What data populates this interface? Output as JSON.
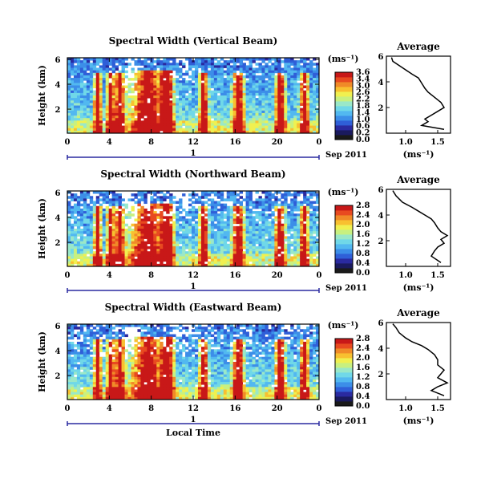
{
  "chart_data": [
    {
      "type": "heatmap",
      "title": "Spectral Width (Vertical Beam)",
      "ylabel": "Height (km)",
      "x_ticks": [
        "0",
        "4",
        "8",
        "12",
        "16",
        "20",
        "0"
      ],
      "y_ticks": [
        "6",
        "4",
        "2"
      ],
      "date_label": "Sep 2011",
      "day_marker": "1",
      "colorbar": {
        "unit": "(ms⁻¹)",
        "ticks": [
          "3.6",
          "3.4",
          "3.0",
          "2.6",
          "2.2",
          "1.8",
          "1.4",
          "1.0",
          "0.6",
          "0.2",
          "0.0"
        ]
      },
      "average_profile": {
        "title": "Average",
        "xlabel": "(ms⁻¹)",
        "x_ticks": [
          "1.0",
          "1.5"
        ],
        "y_ticks": [
          "6",
          "4",
          "2"
        ],
        "xlim": [
          0.7,
          1.7
        ],
        "ylim": [
          0,
          6
        ],
        "x": [
          0.78,
          0.8,
          0.95,
          1.1,
          1.2,
          1.25,
          1.3,
          1.35,
          1.45,
          1.55,
          1.6,
          1.5,
          1.4,
          1.3,
          1.35,
          1.25,
          1.6
        ],
        "height_km": [
          5.9,
          5.6,
          5.1,
          4.6,
          4.3,
          3.9,
          3.5,
          3.2,
          2.8,
          2.4,
          2.0,
          1.7,
          1.4,
          1.1,
          0.9,
          0.6,
          0.3
        ]
      }
    },
    {
      "type": "heatmap",
      "title": "Spectral Width (Northward Beam)",
      "ylabel": "Height (km)",
      "x_ticks": [
        "0",
        "4",
        "8",
        "12",
        "16",
        "20",
        "0"
      ],
      "y_ticks": [
        "6",
        "4",
        "2"
      ],
      "date_label": "Sep 2011",
      "day_marker": "1",
      "colorbar": {
        "unit": "(ms⁻¹)",
        "ticks": [
          "2.8",
          "2.4",
          "2.0",
          "1.6",
          "1.2",
          "0.8",
          "0.4",
          "0.0"
        ]
      },
      "average_profile": {
        "title": "Average",
        "xlabel": "(ms⁻¹)",
        "x_ticks": [
          "1.0",
          "1.5"
        ],
        "y_ticks": [
          "6",
          "4",
          "2"
        ],
        "xlim": [
          0.7,
          1.7
        ],
        "ylim": [
          0,
          6
        ],
        "x": [
          0.8,
          0.85,
          0.95,
          1.1,
          1.2,
          1.3,
          1.4,
          1.45,
          1.5,
          1.55,
          1.65,
          1.55,
          1.6,
          1.5,
          1.45,
          1.4,
          1.55
        ],
        "height_km": [
          5.9,
          5.5,
          5.0,
          4.6,
          4.3,
          4.0,
          3.7,
          3.4,
          3.0,
          2.7,
          2.4,
          2.1,
          1.8,
          1.5,
          1.2,
          0.8,
          0.3
        ]
      }
    },
    {
      "type": "heatmap",
      "title": "Spectral Width (Eastward Beam)",
      "ylabel": "Height (km)",
      "x_ticks": [
        "0",
        "4",
        "8",
        "12",
        "16",
        "20",
        "0"
      ],
      "y_ticks": [
        "6",
        "4",
        "2"
      ],
      "date_label": "Sep 2011",
      "day_marker": "1",
      "xlabel": "Local Time",
      "colorbar": {
        "unit": "(ms⁻¹)",
        "ticks": [
          "2.8",
          "2.4",
          "2.0",
          "1.6",
          "1.2",
          "0.8",
          "0.4",
          "0.0"
        ]
      },
      "average_profile": {
        "title": "Average",
        "xlabel": "(ms⁻¹)",
        "x_ticks": [
          "1.0",
          "1.5"
        ],
        "y_ticks": [
          "6",
          "4",
          "2"
        ],
        "xlim": [
          0.7,
          1.7
        ],
        "ylim": [
          0,
          6
        ],
        "x": [
          0.8,
          0.85,
          0.9,
          1.0,
          1.1,
          1.25,
          1.35,
          1.45,
          1.5,
          1.5,
          1.6,
          1.55,
          1.5,
          1.65,
          1.5,
          1.4,
          1.6
        ],
        "height_km": [
          5.9,
          5.6,
          5.2,
          4.8,
          4.5,
          4.2,
          3.9,
          3.5,
          3.1,
          2.7,
          2.3,
          2.0,
          1.7,
          1.3,
          1.0,
          0.7,
          0.3
        ]
      }
    }
  ],
  "colors": {
    "scale": [
      "#1a1a1a",
      "#1a1a5e",
      "#2a2aa0",
      "#2f5fd8",
      "#3c8ee8",
      "#52b8f0",
      "#70d8e8",
      "#9ae8c8",
      "#c8f080",
      "#f0f050",
      "#f8c030",
      "#f08a28",
      "#e84a20",
      "#c81818"
    ],
    "axis_marker": "#2a2aa0"
  }
}
